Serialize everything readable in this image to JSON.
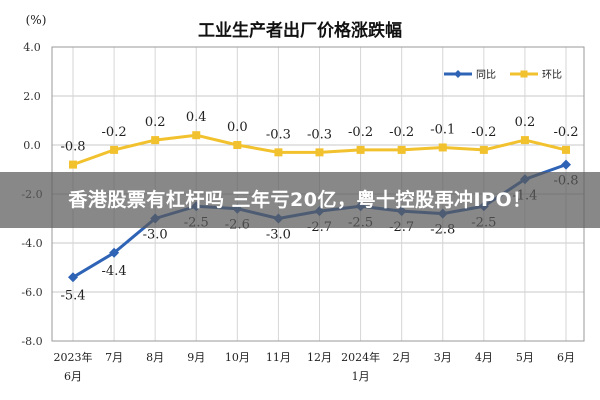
{
  "headline": "香港股票有杠杆吗 三年亏20亿，粤十控股再冲IPO！",
  "chart_data": {
    "type": "line",
    "title": "工业生产者出厂价格涨跌幅",
    "ylabel": "(%)",
    "xlabel": "",
    "ylim": [
      -8.0,
      4.0
    ],
    "yticks": [
      "4.0",
      "2.0",
      "0.0",
      "-2.0",
      "-4.0",
      "-6.0",
      "-8.0"
    ],
    "ytick_values": [
      4,
      2,
      0,
      -2,
      -4,
      -6,
      -8
    ],
    "categories": [
      [
        "2023年",
        "6月"
      ],
      [
        "7月"
      ],
      [
        "8月"
      ],
      [
        "9月"
      ],
      [
        "10月"
      ],
      [
        "11月"
      ],
      [
        "12月"
      ],
      [
        "2024年",
        "1月"
      ],
      [
        "2月"
      ],
      [
        "3月"
      ],
      [
        "4月"
      ],
      [
        "5月"
      ],
      [
        "6月"
      ]
    ],
    "grid": true,
    "legend_position": "top-right",
    "series": [
      {
        "name": "同比",
        "color": "#2e63b5",
        "marker": "diamond",
        "values": [
          -5.4,
          -4.4,
          -3.0,
          -2.5,
          -2.6,
          -3.0,
          -2.7,
          -2.5,
          -2.7,
          -2.8,
          -2.5,
          -1.4,
          -0.8
        ],
        "labels": [
          "-5.4",
          "-4.4",
          "-3.0",
          "-2.5",
          "-2.6",
          "-3.0",
          "-2.7",
          "-2.5",
          "-2.7",
          "-2.8",
          "-2.5",
          "-1.4",
          "-0.8"
        ]
      },
      {
        "name": "环比",
        "color": "#f2c12e",
        "marker": "square",
        "values": [
          -0.8,
          -0.2,
          0.2,
          0.4,
          0.0,
          -0.3,
          -0.3,
          -0.2,
          -0.2,
          -0.1,
          -0.2,
          0.2,
          -0.2
        ],
        "labels": [
          "-0.8",
          "-0.2",
          "0.2",
          "0.4",
          "0.0",
          "-0.3",
          "-0.3",
          "-0.2",
          "-0.2",
          "-0.1",
          "-0.2",
          "0.2",
          "-0.2"
        ]
      }
    ]
  }
}
